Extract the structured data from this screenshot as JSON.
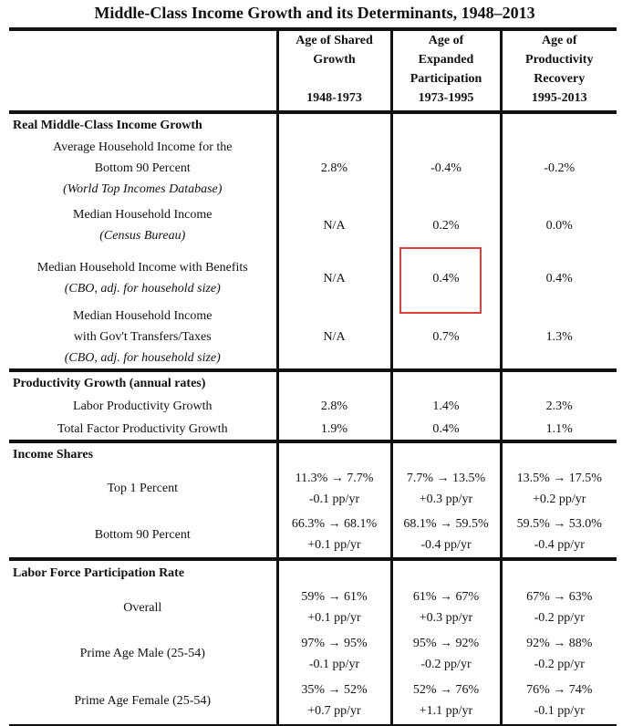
{
  "title": "Middle-Class Income Growth and its Determinants, 1948–2013",
  "columns": [
    {
      "lines": [
        "Age of Shared",
        "Growth",
        ""
      ],
      "period": "1948-1973"
    },
    {
      "lines": [
        "Age of",
        "Expanded",
        "Participation"
      ],
      "period": "1973-1995"
    },
    {
      "lines": [
        "Age of",
        "Productivity",
        "Recovery"
      ],
      "period": "1995-2013"
    }
  ],
  "sections": [
    {
      "title": "Real Middle-Class Income Growth",
      "rows": [
        {
          "label": [
            "Average Household Income for the",
            "Bottom 90 Percent"
          ],
          "source": "(World Top Incomes Database)",
          "values": [
            [
              "2.8%"
            ],
            [
              "-0.4%"
            ],
            [
              "-0.2%"
            ]
          ]
        },
        {
          "label": [
            "Median Household Income"
          ],
          "source": "(Census Bureau)",
          "values": [
            [
              "N/A"
            ],
            [
              "0.2%"
            ],
            [
              "0.0%"
            ]
          ]
        },
        {
          "label": [
            "Median Household Income with Benefits"
          ],
          "source": "(CBO, adj. for household size)",
          "values": [
            [
              "N/A"
            ],
            [
              "0.4%"
            ],
            [
              "0.4%"
            ]
          ]
        },
        {
          "label": [
            "Median Household Income",
            "with Gov't Transfers/Taxes"
          ],
          "source": "(CBO, adj. for household size)",
          "values": [
            [
              "N/A"
            ],
            [
              "0.7%"
            ],
            [
              "1.3%"
            ]
          ]
        }
      ]
    },
    {
      "title": "Productivity Growth (annual rates)",
      "rows": [
        {
          "label": [
            "Labor Productivity Growth"
          ],
          "values": [
            [
              "2.8%"
            ],
            [
              "1.4%"
            ],
            [
              "2.3%"
            ]
          ]
        },
        {
          "label": [
            "Total Factor Productivity Growth"
          ],
          "values": [
            [
              "1.9%"
            ],
            [
              "0.4%"
            ],
            [
              "1.1%"
            ]
          ]
        }
      ]
    },
    {
      "title": "Income Shares",
      "rows": [
        {
          "label": [
            "Top 1 Percent"
          ],
          "values": [
            [
              "11.3% → 7.7%",
              "-0.1 pp/yr"
            ],
            [
              "7.7% → 13.5%",
              "+0.3 pp/yr"
            ],
            [
              "13.5% → 17.5%",
              "+0.2 pp/yr"
            ]
          ]
        },
        {
          "label": [
            "Bottom 90 Percent"
          ],
          "values": [
            [
              "66.3% → 68.1%",
              "+0.1 pp/yr"
            ],
            [
              "68.1% → 59.5%",
              "-0.4 pp/yr"
            ],
            [
              "59.5% → 53.0%",
              "-0.4 pp/yr"
            ]
          ]
        }
      ]
    },
    {
      "title": "Labor Force Participation Rate",
      "rows": [
        {
          "label": [
            "Overall"
          ],
          "values": [
            [
              "59% → 61%",
              "+0.1 pp/yr"
            ],
            [
              "61% → 67%",
              "+0.3 pp/yr"
            ],
            [
              "67% → 63%",
              "-0.2 pp/yr"
            ]
          ]
        },
        {
          "label": [
            "Prime Age Male (25-54)"
          ],
          "values": [
            [
              "97% → 95%",
              "-0.1 pp/yr"
            ],
            [
              "95% → 92%",
              "-0.2 pp/yr"
            ],
            [
              "92% → 88%",
              "-0.2 pp/yr"
            ]
          ]
        },
        {
          "label": [
            "Prime Age Female (25-54)"
          ],
          "values": [
            [
              "35% → 52%",
              "+0.7 pp/yr"
            ],
            [
              "52% → 76%",
              "+1.1 pp/yr"
            ],
            [
              "76% → 74%",
              "-0.1 pp/yr"
            ]
          ]
        }
      ]
    }
  ],
  "highlight_color": "#e0403a"
}
